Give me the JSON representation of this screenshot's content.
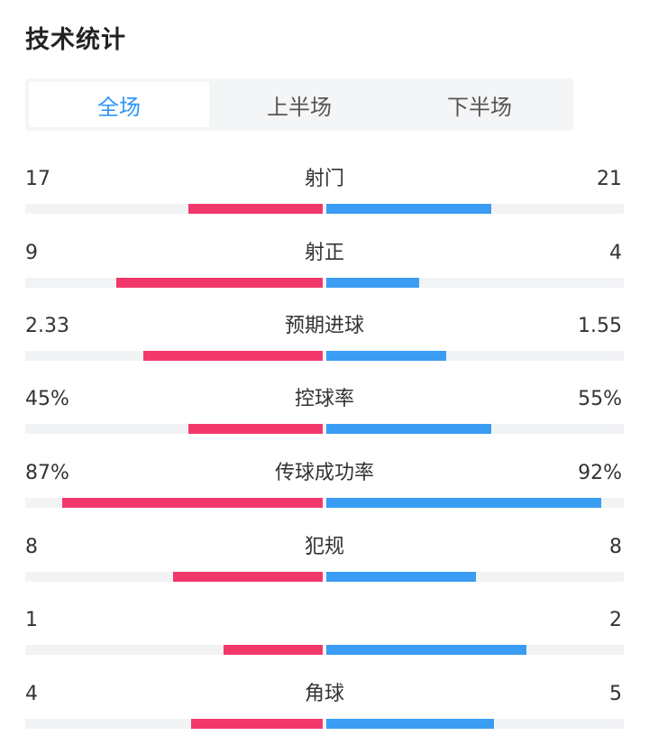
{
  "page": {
    "title": "技术统计"
  },
  "tabs": [
    {
      "label": "全场",
      "active": true
    },
    {
      "label": "上半场",
      "active": false
    },
    {
      "label": "下半场",
      "active": false
    }
  ],
  "colors": {
    "accent": "#2f97f7",
    "home": "#f2386b",
    "away": "#3a9cf2",
    "track": "#f2f3f5"
  },
  "stats": [
    {
      "label": "射门",
      "home": "17",
      "away": "21",
      "home_fill": 0.45,
      "away_fill": 0.55
    },
    {
      "label": "射正",
      "home": "9",
      "away": "4",
      "home_fill": 0.69,
      "away_fill": 0.31
    },
    {
      "label": "预期进球",
      "home": "2.33",
      "away": "1.55",
      "home_fill": 0.6,
      "away_fill": 0.4
    },
    {
      "label": "控球率",
      "home": "45%",
      "away": "55%",
      "home_fill": 0.45,
      "away_fill": 0.55
    },
    {
      "label": "传球成功率",
      "home": "87%",
      "away": "92%",
      "home_fill": 0.87,
      "away_fill": 0.92
    },
    {
      "label": "犯规",
      "home": "8",
      "away": "8",
      "home_fill": 0.5,
      "away_fill": 0.5
    },
    {
      "label": "",
      "home": "1",
      "away": "2",
      "home_fill": 0.33,
      "away_fill": 0.67
    },
    {
      "label": "角球",
      "home": "4",
      "away": "5",
      "home_fill": 0.44,
      "away_fill": 0.56
    }
  ]
}
